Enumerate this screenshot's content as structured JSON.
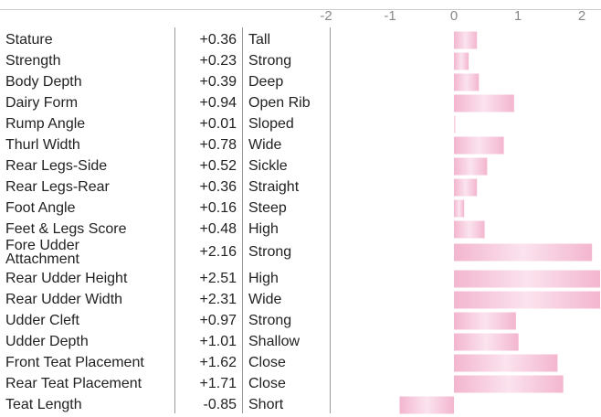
{
  "chart_data": {
    "type": "bar",
    "orientation": "horizontal",
    "xlim": [
      -2,
      2
    ],
    "xticks": [
      -2,
      -1,
      0,
      1,
      2
    ],
    "xtick_labels": [
      "-2",
      "-1",
      "0",
      "1",
      "2"
    ],
    "bar_color": "#f3b6cf",
    "bar_color_light": "#fbe3ee",
    "categories": [
      "Stature",
      "Strength",
      "Body Depth",
      "Dairy Form",
      "Rump Angle",
      "Thurl Width",
      "Rear Legs-Side",
      "Rear Legs-Rear",
      "Foot Angle",
      "Feet & Legs Score",
      "Fore Udder Attachment",
      "Rear Udder Height",
      "Rear Udder Width",
      "Udder Cleft",
      "Udder Depth",
      "Front Teat Placement",
      "Rear Teat Placement",
      "Teat Length"
    ],
    "values": [
      0.36,
      0.23,
      0.39,
      0.94,
      0.01,
      0.78,
      0.52,
      0.36,
      0.16,
      0.48,
      2.16,
      2.51,
      2.31,
      0.97,
      1.01,
      1.62,
      1.71,
      -0.85
    ],
    "value_labels": [
      "+0.36",
      "+0.23",
      "+0.39",
      "+0.94",
      "+0.01",
      "+0.78",
      "+0.52",
      "+0.36",
      "+0.16",
      "+0.48",
      "+2.16",
      "+2.51",
      "+2.31",
      "+0.97",
      "+1.01",
      "+1.62",
      "+1.71",
      "-0.85"
    ],
    "descriptors": [
      "Tall",
      "Strong",
      "Deep",
      "Open Rib",
      "Sloped",
      "Wide",
      "Sickle",
      "Straight",
      "Steep",
      "High",
      "Strong",
      "High",
      "Wide",
      "Strong",
      "Shallow",
      "Close",
      "Close",
      "Short"
    ],
    "grid": false
  }
}
